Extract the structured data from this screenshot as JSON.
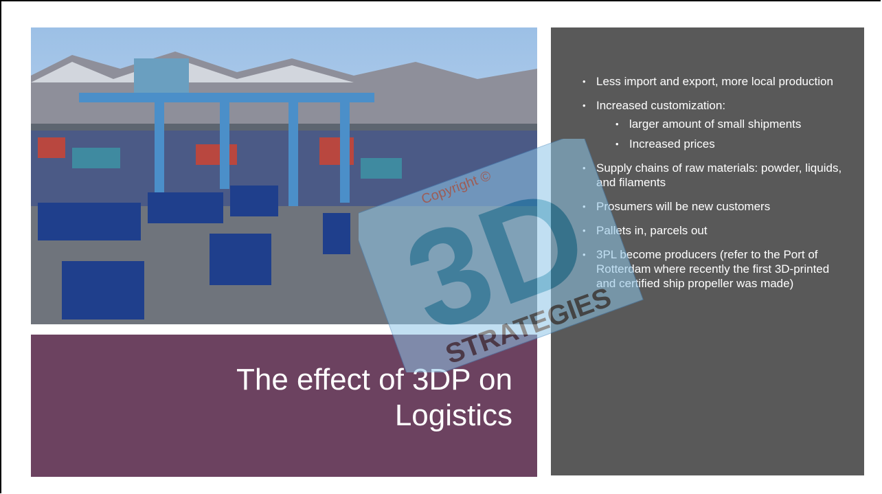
{
  "title": "The effect of 3DP on Logistics",
  "bullets": [
    {
      "text": "Less import and export, more local production"
    },
    {
      "text": "Increased customization:",
      "sub": [
        "larger amount of small shipments",
        "Increased prices"
      ]
    },
    {
      "text": "Supply chains of raw materials: powder, liquids, and filaments"
    },
    {
      "text": "Prosumers will be new customers"
    },
    {
      "text": "Pallets in, parcels out"
    },
    {
      "text": "3PL become producers (refer to the Port of Rotterdam where recently the first 3D-printed and certified ship propeller was made)"
    }
  ],
  "watermark": {
    "copyright": "Copyright ©",
    "logo": "3D",
    "brand": "STRATEGIES"
  }
}
